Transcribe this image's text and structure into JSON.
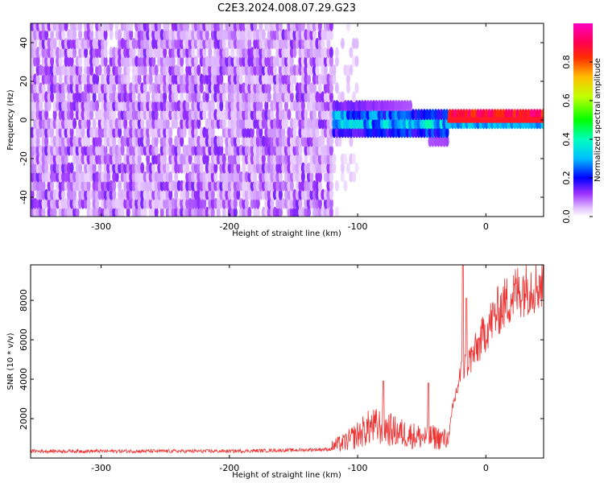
{
  "title": "C2E3.2024.008.07.29.G23",
  "chart_data": [
    {
      "type": "heatmap",
      "xlabel": "Height of straight line (km)",
      "ylabel": "Frequency (Hz)",
      "xlim": [
        -355,
        45
      ],
      "ylim": [
        -50,
        50
      ],
      "xticks": [
        -300,
        -200,
        -100,
        0
      ],
      "xtick_labels": [
        "-300",
        "-200",
        "-100",
        "0"
      ],
      "yticks": [
        -40,
        -20,
        0,
        20,
        40
      ],
      "ytick_labels": [
        "-40",
        "-20",
        "0",
        "20",
        "40"
      ],
      "grid": false,
      "colorbar": {
        "label": "Normalized spectral amplitude",
        "range": [
          0,
          1
        ],
        "ticks": [
          0.0,
          0.2,
          0.4,
          0.6,
          0.8
        ],
        "tick_labels": [
          "0.0",
          "0.2",
          "0.4",
          "0.6",
          "0.8"
        ],
        "colors": [
          "#ffffff",
          "#d9a8ff",
          "#8a2be2",
          "#0000ff",
          "#00e5ff",
          "#00ff00",
          "#ffff00",
          "#ff8000",
          "#ff0000",
          "#ff00aa"
        ]
      },
      "regions": [
        {
          "x_range": [
            -355,
            -120
          ],
          "freq_range": [
            -50,
            50
          ],
          "amplitude": 0.12,
          "description_level": "noise"
        },
        {
          "x_range": [
            -120,
            -30
          ],
          "freq_center": -2,
          "freq_halfwidth": 8,
          "amplitude": 0.3
        },
        {
          "x_range": [
            -30,
            45
          ],
          "freq_center": 0,
          "freq_halfwidth": 1,
          "amplitude": 0.9
        }
      ]
    },
    {
      "type": "line",
      "xlabel": "Height of straight line (km)",
      "ylabel": "SNR (10 * v/v)",
      "xlim": [
        -355,
        45
      ],
      "ylim": [
        0,
        9800
      ],
      "xticks": [
        -300,
        -200,
        -100,
        0
      ],
      "xtick_labels": [
        "-300",
        "-200",
        "-100",
        "0"
      ],
      "yticks": [
        2000,
        4000,
        6000,
        8000
      ],
      "ytick_labels": [
        "2000",
        "4000",
        "6000",
        "8000"
      ],
      "grid": false,
      "color": "#ee3333",
      "envelope": {
        "x": [
          -355,
          -300,
          -200,
          -150,
          -120,
          -110,
          -100,
          -90,
          -80,
          -70,
          -60,
          -50,
          -40,
          -30,
          -25,
          -20,
          -15,
          -10,
          -5,
          0,
          10,
          20,
          30,
          45
        ],
        "y": [
          350,
          350,
          350,
          400,
          450,
          600,
          900,
          1200,
          1200,
          1000,
          900,
          800,
          800,
          700,
          2800,
          4200,
          4800,
          5200,
          5800,
          6500,
          7500,
          8200,
          8700,
          8900
        ]
      },
      "peaks": [
        {
          "x": -80,
          "y": 3900
        },
        {
          "x": -45,
          "y": 3800
        },
        {
          "x": -18,
          "y": 9800
        },
        {
          "x": -15,
          "y": 8100
        }
      ]
    }
  ]
}
